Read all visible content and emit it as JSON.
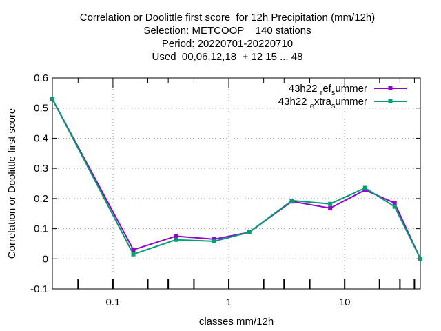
{
  "chart_data": {
    "type": "line",
    "title": [
      "Correlation or Doolittle first score  for 12h Precipitation (mm/12h)",
      "Selection: METCOOP    140 stations",
      "Period: 20220701-20220710",
      "Used  00,06,12,18  + 12 15 ... 48"
    ],
    "xlabel": "classes mm/12h",
    "ylabel": "Correlation or Doolittle first score",
    "x_scale": "log",
    "xlim": [
      0.03,
      45
    ],
    "ylim": [
      -0.1,
      0.6
    ],
    "x_ticks": [
      {
        "value": 0.1,
        "label": "0.1"
      },
      {
        "value": 1,
        "label": "1"
      },
      {
        "value": 10,
        "label": "10"
      }
    ],
    "y_ticks": [
      {
        "value": -0.1,
        "label": "-0.1"
      },
      {
        "value": 0,
        "label": "0"
      },
      {
        "value": 0.1,
        "label": "0.1"
      },
      {
        "value": 0.2,
        "label": "0.2"
      },
      {
        "value": 0.3,
        "label": "0.3"
      },
      {
        "value": 0.4,
        "label": "0.4"
      },
      {
        "value": 0.5,
        "label": "0.5"
      },
      {
        "value": 0.6,
        "label": "0.6"
      }
    ],
    "minor_x_ticks": [
      0.05,
      0.2,
      0.3,
      0.5,
      2,
      3,
      5,
      20,
      30,
      40
    ],
    "grid": true,
    "legend_position": "top-right",
    "series": [
      {
        "legend_parts": [
          "43h22 ",
          "ref",
          "summer"
        ],
        "color": "#9400d3",
        "x": [
          0.03,
          0.15,
          0.35,
          0.75,
          1.5,
          3.5,
          7.5,
          15,
          27,
          45
        ],
        "y": [
          0.53,
          0.03,
          0.075,
          0.065,
          0.088,
          0.19,
          0.168,
          0.228,
          0.185,
          0.0
        ]
      },
      {
        "legend_parts": [
          "43h22 ",
          "extra",
          "summer"
        ],
        "color": "#009e73",
        "x": [
          0.03,
          0.15,
          0.35,
          0.75,
          1.5,
          3.5,
          7.5,
          15,
          27,
          45
        ],
        "y": [
          0.53,
          0.015,
          0.063,
          0.058,
          0.088,
          0.193,
          0.182,
          0.235,
          0.173,
          0.0
        ]
      }
    ]
  }
}
